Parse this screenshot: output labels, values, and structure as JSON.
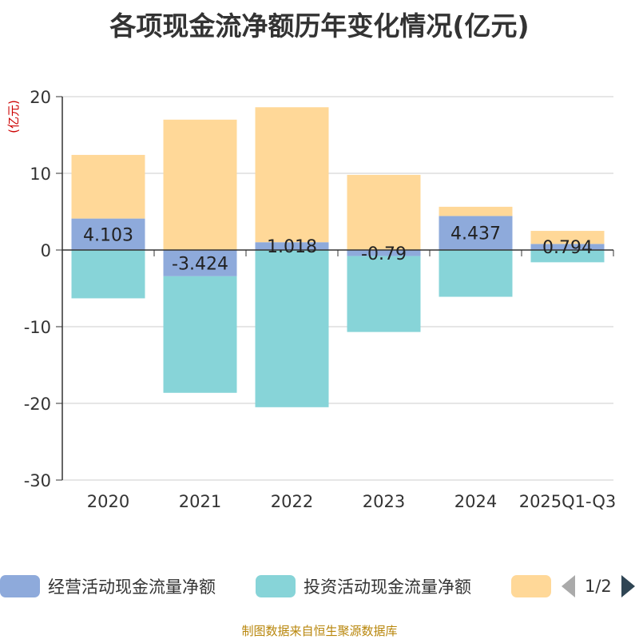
{
  "chart_data": {
    "type": "bar",
    "stacked": true,
    "title": "各项现金流净额历年变化情况(亿元)",
    "ylabel": "(亿元)",
    "xlabel": "",
    "ylim": [
      -30,
      20
    ],
    "yticks": [
      20,
      10,
      0,
      -10,
      -20,
      -30
    ],
    "categories": [
      "2020",
      "2021",
      "2022",
      "2023",
      "2024",
      "2025Q1-Q3"
    ],
    "series": [
      {
        "name": "经营活动现金流量净额",
        "color": "#8eaadb",
        "values": [
          4.103,
          -3.424,
          1.018,
          -0.79,
          4.437,
          0.794
        ],
        "labels": [
          "4.103",
          "-3.424",
          "1.018",
          "-0.79",
          "4.437",
          "0.794"
        ]
      },
      {
        "name": "投资活动现金流量净额",
        "color": "#87d4d8",
        "values": [
          -6.3,
          -15.2,
          -20.5,
          -9.9,
          -6.1,
          -1.6
        ]
      },
      {
        "name": "",
        "color": "#ffd898",
        "values": [
          8.3,
          17.0,
          17.6,
          9.8,
          1.2,
          1.7
        ]
      }
    ],
    "legend_position": "bottom"
  },
  "legend": {
    "items": [
      {
        "label": "经营活动现金流量净额",
        "color": "#8eaadb"
      },
      {
        "label": "投资活动现金流量净额",
        "color": "#87d4d8"
      },
      {
        "label": "",
        "color": "#ffd898"
      }
    ],
    "page": "1/2"
  },
  "source_note": "制图数据来自恒生聚源数据库"
}
